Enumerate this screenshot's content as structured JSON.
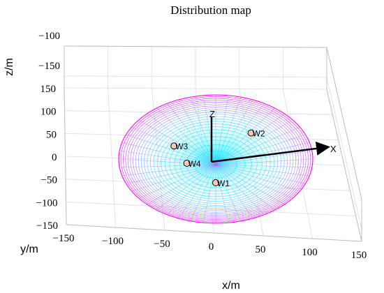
{
  "chart_data": {
    "type": "scatter",
    "title": "Distribution map",
    "xlabel": "x/m",
    "ylabel": "y/m",
    "zlabel": "z/m",
    "x_ticks": [
      "−150",
      "−100",
      "−50",
      "0",
      "50",
      "100",
      "150"
    ],
    "y_ticks": [
      "−150",
      "−100",
      "−50",
      "0",
      "50",
      "100",
      "150"
    ],
    "z_ticks": [
      "−100",
      "−150"
    ],
    "xlim": [
      -150,
      150
    ],
    "ylim": [
      -150,
      150
    ],
    "zlim": [
      -170,
      -100
    ],
    "grid": true,
    "surface": {
      "shape": "paraboloid bowl",
      "rim_radius": 120,
      "rim_color": "#ff00ff",
      "center_color": "#00ffff"
    },
    "local_axes": [
      {
        "label": "X"
      },
      {
        "label": "Z"
      }
    ],
    "points": [
      {
        "label": "W1",
        "x": 0,
        "y": -45,
        "z": -160
      },
      {
        "label": "W2",
        "x": 55,
        "y": 70,
        "z": -140
      },
      {
        "label": "W3",
        "x": -65,
        "y": 40,
        "z": -145
      },
      {
        "label": "W4",
        "x": -45,
        "y": 0,
        "z": -150
      }
    ]
  }
}
